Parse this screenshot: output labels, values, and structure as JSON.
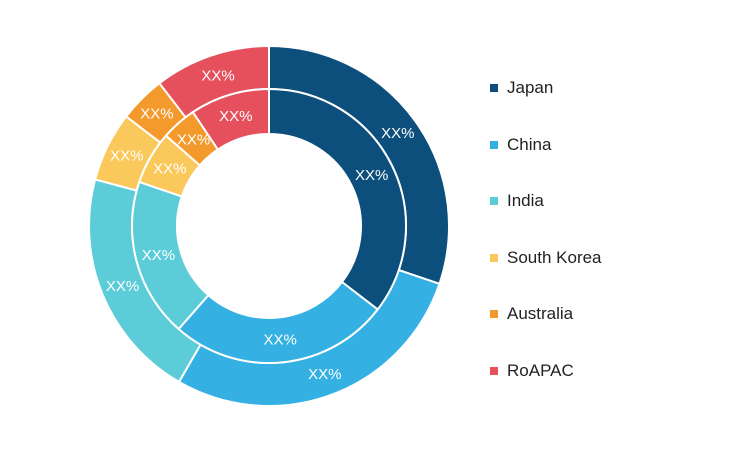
{
  "chart_data": {
    "type": "pie",
    "colors": {
      "Japan": "#0d4f7c",
      "China": "#34b0e3",
      "India": "#5ccdd8",
      "South Korea": "#fbc95b",
      "Australia": "#f49a2c",
      "RoAPAC": "#e5505c"
    },
    "legend": {
      "position": "right",
      "items": [
        "Japan",
        "China",
        "India",
        "South Korea",
        "Australia",
        "RoAPAC"
      ]
    },
    "outer_ring": {
      "categories": [
        "Japan",
        "China",
        "India",
        "South Korea",
        "Australia",
        "RoAPAC"
      ],
      "values": [
        29,
        27,
        20,
        6,
        4,
        10
      ],
      "labels": [
        "XX%",
        "XX%",
        "XX%",
        "XX%",
        "XX%",
        "XX%"
      ]
    },
    "inner_ring": {
      "categories": [
        "Japan",
        "China",
        "India",
        "South Korea",
        "Australia",
        "RoAPAC"
      ],
      "values": [
        34,
        25,
        18,
        6,
        4,
        9
      ],
      "labels": [
        "XX%",
        "XX%",
        "XX%",
        "XX%",
        "XX%",
        "XX%"
      ]
    }
  }
}
